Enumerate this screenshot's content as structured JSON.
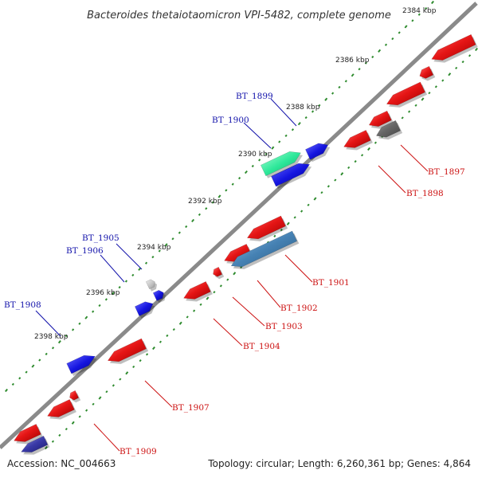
{
  "title": "Bacteroides thetaiotaomicron VPI-5482, complete genome",
  "footer": {
    "accession": "Accession: NC_004663",
    "summary": "Topology: circular; Length: 6,260,361 bp; Genes: 4,864"
  },
  "scale_labels": [
    {
      "id": "2384",
      "label": "2384 kbp"
    },
    {
      "id": "2386",
      "label": "2386 kbp"
    },
    {
      "id": "2388",
      "label": "2388 kbp"
    },
    {
      "id": "2390",
      "label": "2390 kbp"
    },
    {
      "id": "2392",
      "label": "2392 kbp"
    },
    {
      "id": "2394",
      "label": "2394 kbp"
    },
    {
      "id": "2396",
      "label": "2396 kbp"
    },
    {
      "id": "2398",
      "label": "2398 kbp"
    }
  ],
  "gene_labels": [
    {
      "id": "BT_1897",
      "label": "BT_1897",
      "strand": "reverse",
      "color": "#cc1111"
    },
    {
      "id": "BT_1898",
      "label": "BT_1898",
      "strand": "reverse",
      "color": "#cc1111"
    },
    {
      "id": "BT_1899",
      "label": "BT_1899",
      "strand": "forward",
      "color": "#1111aa"
    },
    {
      "id": "BT_1900",
      "label": "BT_1900",
      "strand": "forward",
      "color": "#1111aa"
    },
    {
      "id": "BT_1901",
      "label": "BT_1901",
      "strand": "reverse",
      "color": "#cc1111"
    },
    {
      "id": "BT_1902",
      "label": "BT_1902",
      "strand": "reverse",
      "color": "#cc1111"
    },
    {
      "id": "BT_1903",
      "label": "BT_1903",
      "strand": "reverse",
      "color": "#cc1111"
    },
    {
      "id": "BT_1904",
      "label": "BT_1904",
      "strand": "reverse",
      "color": "#cc1111"
    },
    {
      "id": "BT_1905",
      "label": "BT_1905",
      "strand": "forward",
      "color": "#1111aa"
    },
    {
      "id": "BT_1906",
      "label": "BT_1906",
      "strand": "forward",
      "color": "#1111aa"
    },
    {
      "id": "BT_1907",
      "label": "BT_1907",
      "strand": "reverse",
      "color": "#cc1111"
    },
    {
      "id": "BT_1908",
      "label": "BT_1908",
      "strand": "forward",
      "color": "#1111aa"
    },
    {
      "id": "BT_1909",
      "label": "BT_1909",
      "strand": "reverse",
      "color": "#cc1111"
    }
  ],
  "colors": {
    "backbone": "#8a8a8a",
    "scale_dots": "#2e8b2e",
    "forward_gene": "#1515e0",
    "reverse_gene": "#e01515",
    "highlight_gene": "#2ee89a",
    "rna_gene": "#4682b4",
    "pseudo_gene": "#666666",
    "light_gene": "#c8c8c8"
  }
}
